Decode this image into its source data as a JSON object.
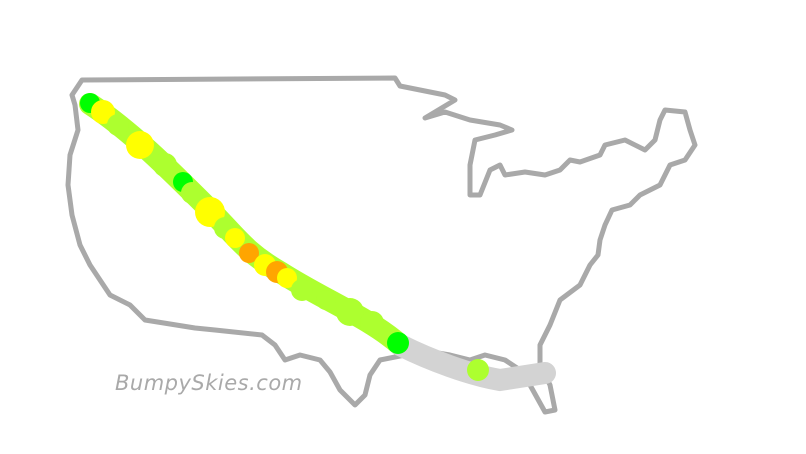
{
  "brand": {
    "text": "BumpySkies.com"
  },
  "colors": {
    "outline": "#a9a9a9",
    "smooth": "#00ff00",
    "light": "#adff2f",
    "moderate": "#ffff00",
    "strong": "#ffa500",
    "no_data": "#d3d3d3"
  },
  "route": {
    "segments": [
      {
        "level": "light"
      },
      {
        "level": "no_data"
      }
    ],
    "points": [
      {
        "level": "smooth"
      },
      {
        "level": "moderate"
      },
      {
        "level": "light"
      },
      {
        "level": "moderate"
      },
      {
        "level": "light"
      },
      {
        "level": "smooth"
      },
      {
        "level": "light"
      },
      {
        "level": "moderate"
      },
      {
        "level": "light"
      },
      {
        "level": "moderate"
      },
      {
        "level": "strong"
      },
      {
        "level": "moderate"
      },
      {
        "level": "strong"
      },
      {
        "level": "moderate"
      },
      {
        "level": "light"
      },
      {
        "level": "light"
      },
      {
        "level": "light"
      },
      {
        "level": "light"
      },
      {
        "level": "smooth"
      },
      {
        "level": "light"
      }
    ]
  }
}
